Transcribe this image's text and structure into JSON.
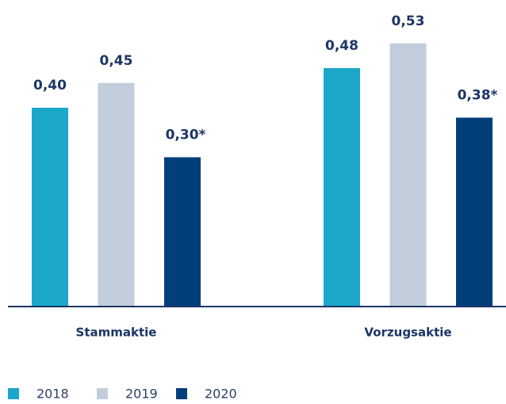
{
  "chart_data": {
    "type": "bar",
    "categories": [
      "Stammaktie",
      "Vorzugsaktie"
    ],
    "series": [
      {
        "name": "2018",
        "color": "#1aa7c9",
        "values": [
          0.4,
          0.48
        ],
        "value_labels": [
          "0,40",
          "0,48"
        ]
      },
      {
        "name": "2019",
        "color": "#c2cddc",
        "values": [
          0.45,
          0.53
        ],
        "value_labels": [
          "0,45",
          "0,53"
        ]
      },
      {
        "name": "2020",
        "color": "#003f7a",
        "values": [
          0.3,
          0.38
        ],
        "value_labels": [
          "0,30*",
          "0,38*"
        ]
      }
    ],
    "ylim": [
      0,
      0.6
    ]
  }
}
